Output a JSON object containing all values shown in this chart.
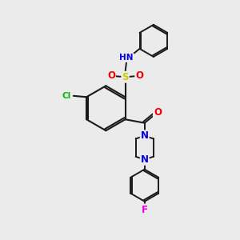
{
  "bg_color": "#ebebeb",
  "bond_color": "#1a1a1a",
  "atom_colors": {
    "N": "#0000ee",
    "O": "#ee0000",
    "S": "#cccc00",
    "Cl": "#00bb00",
    "F": "#ee00ee",
    "H": "#555555",
    "C": "#1a1a1a"
  }
}
